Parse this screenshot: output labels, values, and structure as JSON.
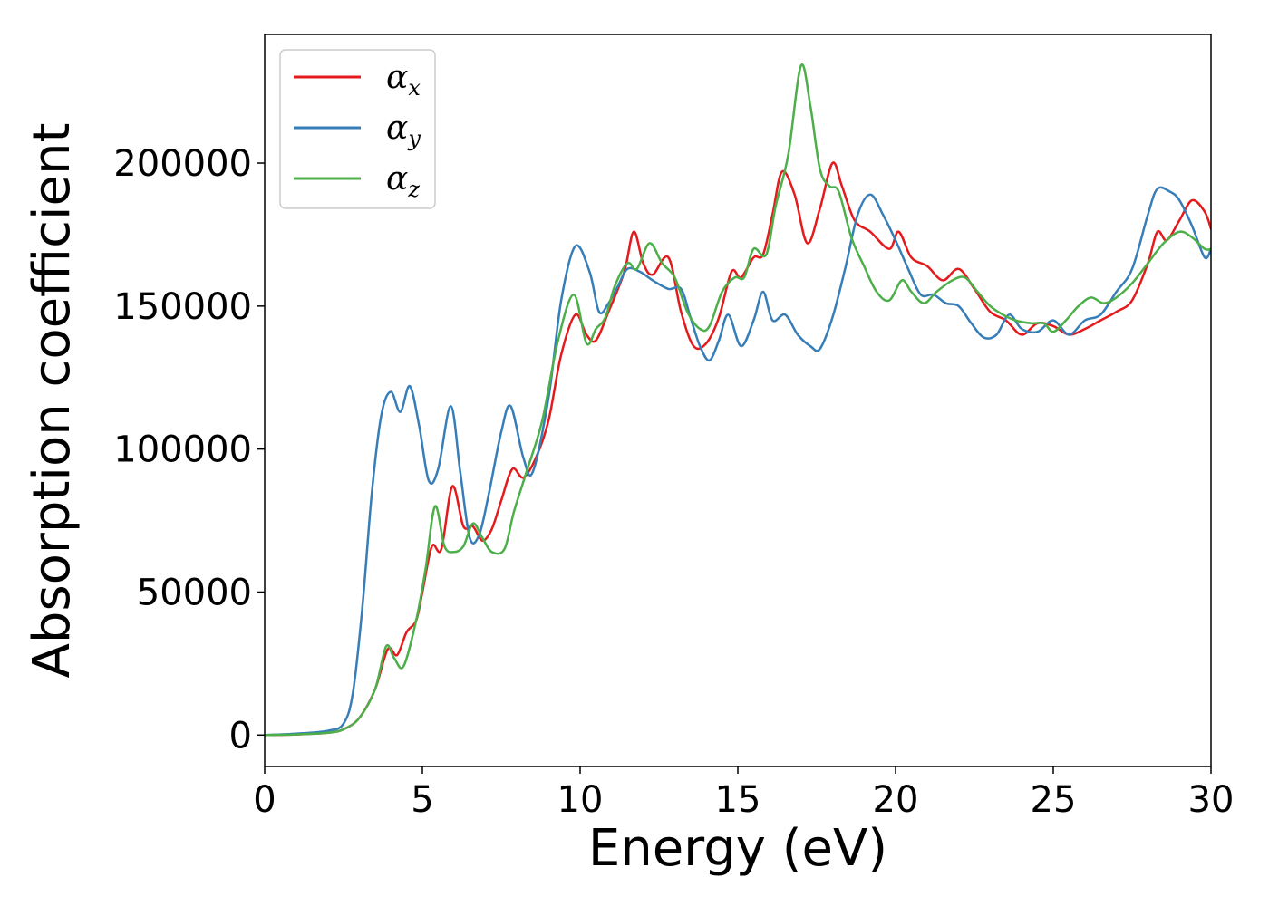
{
  "chart_data": {
    "type": "line",
    "title": "",
    "xlabel": "Energy (eV)",
    "ylabel": "Absorption coefficient",
    "xlim": [
      0,
      30
    ],
    "ylim": [
      -11000,
      245000
    ],
    "xticks": [
      0,
      5,
      10,
      15,
      20,
      25,
      30
    ],
    "xtick_labels": [
      "0",
      "5",
      "10",
      "15",
      "20",
      "25",
      "30"
    ],
    "yticks": [
      0,
      50000,
      100000,
      150000,
      200000
    ],
    "ytick_labels": [
      "0",
      "50000",
      "100000",
      "150000",
      "200000"
    ],
    "grid": false,
    "legend_position": "top-left",
    "series": [
      {
        "name": "α",
        "subscript": "x",
        "color": "#e41a1c",
        "x": [
          0,
          1,
          2,
          2.5,
          3,
          3.5,
          3.9,
          4.2,
          4.5,
          4.8,
          5,
          5.3,
          5.6,
          5.95,
          6.3,
          6.6,
          6.9,
          7.2,
          7.5,
          7.85,
          8.2,
          8.6,
          9.0,
          9.4,
          9.85,
          10.2,
          10.5,
          10.9,
          11.4,
          11.7,
          12.0,
          12.3,
          12.8,
          13.2,
          13.6,
          14.0,
          14.4,
          14.8,
          15.1,
          15.5,
          15.8,
          16.1,
          16.4,
          16.8,
          17.2,
          17.6,
          18.0,
          18.3,
          18.7,
          19.2,
          19.8,
          20.1,
          20.5,
          21.0,
          21.5,
          22.0,
          22.5,
          23.0,
          23.5,
          24.0,
          24.5,
          25.0,
          25.5,
          26.0,
          26.5,
          27.0,
          27.5,
          28.0,
          28.3,
          28.6,
          29.0,
          29.4,
          29.8,
          30
        ],
        "values": [
          0,
          200,
          800,
          2000,
          6000,
          16000,
          30000,
          28000,
          36000,
          40000,
          50000,
          66000,
          65000,
          87000,
          73000,
          73000,
          68000,
          72000,
          82000,
          93000,
          90000,
          97000,
          110000,
          133000,
          147000,
          140000,
          138000,
          148000,
          162000,
          176000,
          165000,
          161000,
          167000,
          148000,
          136000,
          137000,
          146000,
          162000,
          160000,
          167000,
          168000,
          182000,
          197000,
          189000,
          172000,
          184000,
          200000,
          192000,
          180000,
          176000,
          170000,
          176000,
          167000,
          164000,
          159000,
          163000,
          156000,
          148000,
          145000,
          140000,
          144000,
          143000,
          140000,
          142000,
          145000,
          148000,
          152000,
          165000,
          176000,
          173000,
          180000,
          187000,
          183000,
          177000
        ]
      },
      {
        "name": "α",
        "subscript": "y",
        "color": "#377eb8",
        "x": [
          0,
          1,
          2,
          2.5,
          2.8,
          3.1,
          3.4,
          3.7,
          4.0,
          4.3,
          4.6,
          4.9,
          5.2,
          5.5,
          5.9,
          6.2,
          6.5,
          6.8,
          7.1,
          7.5,
          7.8,
          8.2,
          8.5,
          9.0,
          9.4,
          9.85,
          10.3,
          10.6,
          10.9,
          11.2,
          11.5,
          11.9,
          12.3,
          12.8,
          13.2,
          13.5,
          13.8,
          14.1,
          14.4,
          14.7,
          15.1,
          15.5,
          15.8,
          16.1,
          16.5,
          16.9,
          17.3,
          17.6,
          18.0,
          18.4,
          18.8,
          19.2,
          19.6,
          20.0,
          20.4,
          20.8,
          21.2,
          21.6,
          22.0,
          22.4,
          22.8,
          23.2,
          23.6,
          24.0,
          24.5,
          25.0,
          25.5,
          26.0,
          26.5,
          27.0,
          27.5,
          28.0,
          28.3,
          28.7,
          29.0,
          29.4,
          29.8,
          30
        ],
        "values": [
          0,
          500,
          1500,
          4000,
          15000,
          45000,
          85000,
          112000,
          120000,
          113000,
          122000,
          108000,
          89000,
          93000,
          115000,
          92000,
          69000,
          70000,
          84000,
          106000,
          115000,
          97000,
          92000,
          118000,
          152000,
          171000,
          162000,
          148000,
          151000,
          157000,
          163000,
          162000,
          159000,
          156000,
          156000,
          146000,
          136000,
          131000,
          138000,
          147000,
          136000,
          145000,
          155000,
          145000,
          147000,
          140000,
          136000,
          135000,
          146000,
          163000,
          182000,
          189000,
          182000,
          173000,
          163000,
          154000,
          154000,
          151000,
          150000,
          144000,
          139000,
          140000,
          147000,
          142000,
          141000,
          145000,
          140000,
          145000,
          147000,
          155000,
          163000,
          182000,
          191000,
          190000,
          187000,
          178000,
          167000,
          170000
        ]
      },
      {
        "name": "α",
        "subscript": "z",
        "color": "#4daf4a",
        "x": [
          0,
          1,
          2,
          2.5,
          3,
          3.5,
          3.85,
          4.1,
          4.4,
          4.8,
          5.1,
          5.4,
          5.7,
          6.0,
          6.3,
          6.6,
          6.9,
          7.2,
          7.6,
          7.9,
          8.3,
          8.8,
          9.3,
          9.8,
          10.2,
          10.5,
          10.8,
          11.1,
          11.5,
          11.8,
          12.2,
          12.6,
          13.0,
          13.4,
          13.8,
          14.1,
          14.5,
          14.9,
          15.2,
          15.5,
          15.9,
          16.2,
          16.6,
          17.0,
          17.3,
          17.6,
          17.9,
          18.2,
          18.6,
          19.0,
          19.4,
          19.8,
          20.2,
          20.5,
          20.9,
          21.3,
          21.8,
          22.2,
          22.6,
          23.0,
          23.4,
          23.8,
          24.3,
          24.7,
          25.0,
          25.4,
          25.8,
          26.2,
          26.6,
          27.0,
          27.5,
          28.0,
          28.5,
          29.0,
          29.4,
          29.8,
          30
        ],
        "values": [
          0,
          200,
          800,
          2000,
          6000,
          16000,
          31000,
          27000,
          24000,
          40000,
          58000,
          80000,
          66000,
          64000,
          66000,
          74000,
          69000,
          64000,
          65000,
          78000,
          92000,
          110000,
          138000,
          154000,
          137000,
          142000,
          146000,
          157000,
          165000,
          163000,
          172000,
          165000,
          160000,
          148000,
          142000,
          143000,
          155000,
          160000,
          160000,
          170000,
          168000,
          185000,
          203000,
          234000,
          220000,
          198000,
          192000,
          190000,
          174000,
          164000,
          155000,
          152000,
          159000,
          155000,
          151000,
          155000,
          159000,
          160000,
          155000,
          150000,
          147000,
          145000,
          144000,
          144000,
          141000,
          145000,
          150000,
          153000,
          151000,
          153000,
          158000,
          165000,
          172000,
          176000,
          174000,
          170000,
          170000
        ]
      }
    ]
  }
}
